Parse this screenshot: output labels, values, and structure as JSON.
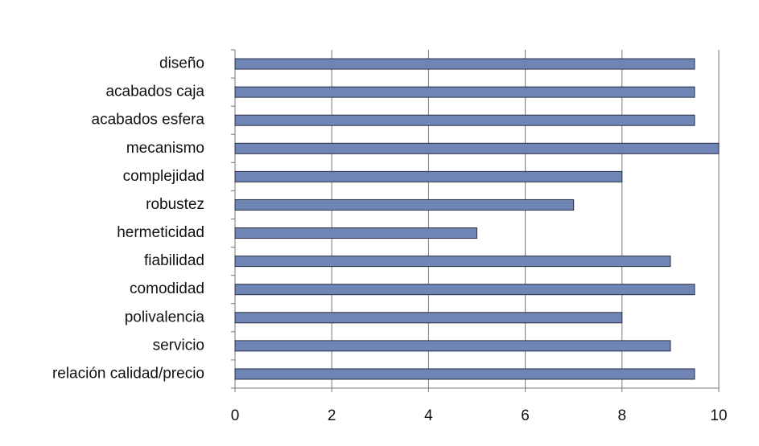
{
  "chart_data": {
    "type": "bar",
    "categories": [
      "diseño",
      "acabados caja",
      "acabados esfera",
      "mecanismo",
      "complejidad",
      "robustez",
      "hermeticidad",
      "fiabilidad",
      "comodidad",
      "polivalencia",
      "servicio",
      "relación calidad/precio"
    ],
    "values": [
      9.5,
      9.5,
      9.5,
      10,
      8,
      7,
      5,
      9,
      9.5,
      8,
      9,
      9.5
    ],
    "color": "#6f85b5",
    "xlim": [
      0,
      10
    ],
    "xticks": [
      0,
      2,
      4,
      6,
      8,
      10
    ],
    "grid": true
  }
}
